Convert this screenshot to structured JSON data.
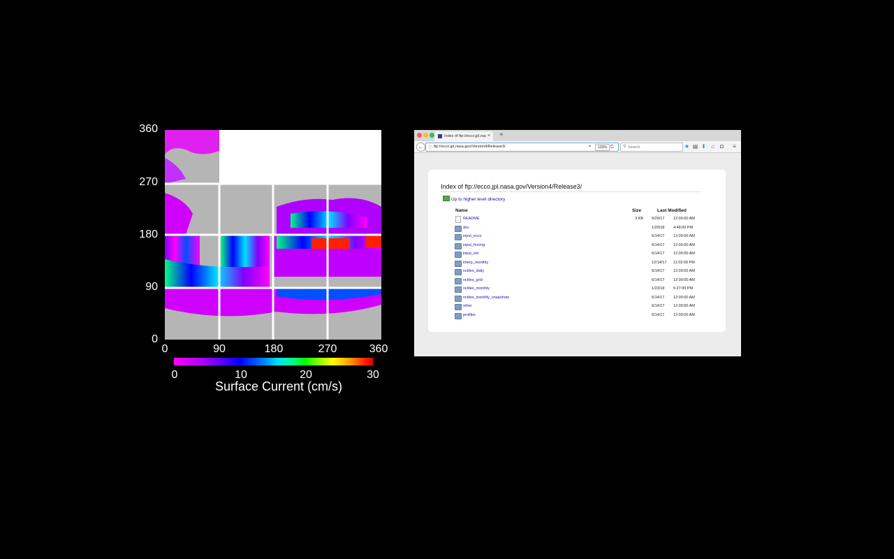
{
  "figure": {
    "y_ticks": [
      "360",
      "270",
      "180",
      "90",
      "0"
    ],
    "x_ticks": [
      "0",
      "90",
      "180",
      "270",
      "360"
    ],
    "colorbar": {
      "ticks": [
        "0",
        "10",
        "20",
        "30"
      ],
      "label": "Surface Current (cm/s)"
    }
  },
  "browser": {
    "tab": {
      "title": "Index of ftp://ecco.jpl.nasa...",
      "close": "×",
      "new_tab": "+"
    },
    "nav": {
      "back": "←",
      "url": "ftp://ecco.jpl.nasa.gov/Version4/Release3/",
      "zoom": "133%",
      "reload": "C",
      "search_placeholder": "Search"
    },
    "page": {
      "heading": "Index of ftp://ecco.jpl.nasa.gov/Version4/Release3/",
      "up_link": "Up to higher level directory",
      "columns": {
        "name": "Name",
        "size": "Size",
        "modified": "Last Modified"
      },
      "rows": [
        {
          "name": "README",
          "type": "file",
          "size": "3 KB",
          "date": "6/29/17",
          "time": "12:00:00 AM"
        },
        {
          "name": "doc",
          "type": "folder",
          "size": "",
          "date": "1/29/18",
          "time": "4:48:00 PM"
        },
        {
          "name": "input_ecco",
          "type": "folder",
          "size": "",
          "date": "6/14/17",
          "time": "12:00:00 AM"
        },
        {
          "name": "input_forcing",
          "type": "folder",
          "size": "",
          "date": "6/14/17",
          "time": "12:00:00 AM"
        },
        {
          "name": "input_init",
          "type": "folder",
          "size": "",
          "date": "6/14/17",
          "time": "12:00:00 AM"
        },
        {
          "name": "interp_monthly",
          "type": "folder",
          "size": "",
          "date": "12/14/17",
          "time": "11:02:00 PM"
        },
        {
          "name": "nctiles_daily",
          "type": "folder",
          "size": "",
          "date": "6/14/17",
          "time": "12:00:00 AM"
        },
        {
          "name": "nctiles_grid",
          "type": "folder",
          "size": "",
          "date": "6/14/17",
          "time": "12:00:00 AM"
        },
        {
          "name": "nctiles_monthly",
          "type": "folder",
          "size": "",
          "date": "1/23/18",
          "time": "5:27:00 PM"
        },
        {
          "name": "nctiles_monthly_snapshots",
          "type": "folder",
          "size": "",
          "date": "6/14/17",
          "time": "12:00:00 AM"
        },
        {
          "name": "other",
          "type": "folder",
          "size": "",
          "date": "6/14/17",
          "time": "12:00:00 AM"
        },
        {
          "name": "profiles",
          "type": "folder",
          "size": "",
          "date": "6/14/17",
          "time": "12:00:00 AM"
        }
      ]
    },
    "toolbar_icons": [
      "star-icon",
      "reading-list-icon",
      "download-icon",
      "home-icon",
      "pocket-icon",
      "menu-icon"
    ]
  }
}
